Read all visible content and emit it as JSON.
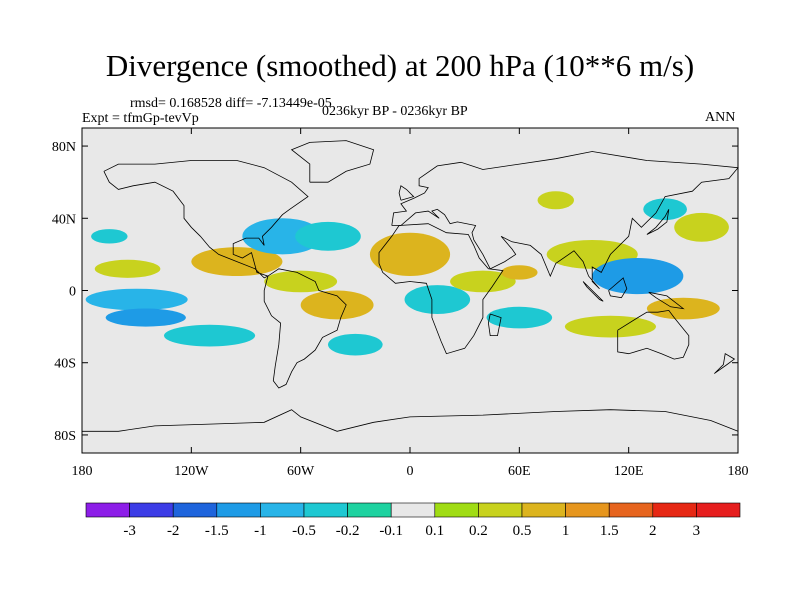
{
  "title": "Divergence (smoothed) at 200 hPa (10**6 m/s)",
  "stats": "rmsd= 0.168528 diff= -7.13449e-05",
  "experiment": "Expt = tfmGp-tevVp",
  "period": "0236kyr BP - 0236kyr BP",
  "season": "ANN",
  "map": {
    "projection": "cylindrical-equidistant",
    "lon_range": [
      -180,
      180
    ],
    "lat_range": [
      -90,
      90
    ],
    "land_color": "#e8e8e8",
    "coast_color": "#000000",
    "x_ticks": [
      {
        "lon": -180,
        "label": "180"
      },
      {
        "lon": -120,
        "label": "120W"
      },
      {
        "lon": -60,
        "label": "60W"
      },
      {
        "lon": 0,
        "label": "0"
      },
      {
        "lon": 60,
        "label": "60E"
      },
      {
        "lon": 120,
        "label": "120E"
      },
      {
        "lon": 180,
        "label": "180"
      }
    ],
    "y_ticks": [
      {
        "lat": 80,
        "label": "80N"
      },
      {
        "lat": 40,
        "label": "40N"
      },
      {
        "lat": 0,
        "label": "0"
      },
      {
        "lat": -40,
        "label": "40S"
      },
      {
        "lat": -80,
        "label": "80S"
      }
    ]
  },
  "colorbar": {
    "boundaries": [
      "-3",
      "-2",
      "-1.5",
      "-1",
      "-0.5",
      "-0.2",
      "-0.1",
      "0.1",
      "0.2",
      "0.5",
      "1",
      "1.5",
      "2",
      "3"
    ],
    "colors": [
      "#8d1ee8",
      "#3c3ce6",
      "#1e64dc",
      "#1e9be6",
      "#28b4e8",
      "#1ec8d2",
      "#1ed2a0",
      "#e8e8e8",
      "#a0dc14",
      "#c8d21e",
      "#dcb41e",
      "#e6961e",
      "#e6641e",
      "#e62814",
      "#e61e1e"
    ]
  },
  "fields": [
    {
      "lon": -155,
      "lat": 12,
      "rx": 18,
      "ry": 5,
      "level": "0.2",
      "color": "#c8d21e"
    },
    {
      "lon": -150,
      "lat": -5,
      "rx": 28,
      "ry": 6,
      "level": "-0.5",
      "color": "#28b4e8"
    },
    {
      "lon": -145,
      "lat": -15,
      "rx": 22,
      "ry": 5,
      "level": "-1",
      "color": "#1e9be6"
    },
    {
      "lon": -110,
      "lat": -25,
      "rx": 25,
      "ry": 6,
      "level": "-0.2",
      "color": "#1ec8d2"
    },
    {
      "lon": -165,
      "lat": 30,
      "rx": 10,
      "ry": 4,
      "level": "-0.2",
      "color": "#1ec8d2"
    },
    {
      "lon": -95,
      "lat": 16,
      "rx": 25,
      "ry": 8,
      "level": "0.5",
      "color": "#dcb41e"
    },
    {
      "lon": -70,
      "lat": 30,
      "rx": 22,
      "ry": 10,
      "level": "-0.5",
      "color": "#28b4e8"
    },
    {
      "lon": -45,
      "lat": 30,
      "rx": 18,
      "ry": 8,
      "level": "-0.2",
      "color": "#1ec8d2"
    },
    {
      "lon": -60,
      "lat": 5,
      "rx": 20,
      "ry": 6,
      "level": "0.2",
      "color": "#c8d21e"
    },
    {
      "lon": -40,
      "lat": -8,
      "rx": 20,
      "ry": 8,
      "level": "0.5",
      "color": "#dcb41e"
    },
    {
      "lon": -30,
      "lat": -30,
      "rx": 15,
      "ry": 6,
      "level": "-0.2",
      "color": "#1ec8d2"
    },
    {
      "lon": 0,
      "lat": 20,
      "rx": 22,
      "ry": 12,
      "level": "0.5",
      "color": "#dcb41e"
    },
    {
      "lon": 15,
      "lat": -5,
      "rx": 18,
      "ry": 8,
      "level": "-0.2",
      "color": "#1ec8d2"
    },
    {
      "lon": 40,
      "lat": 5,
      "rx": 18,
      "ry": 6,
      "level": "0.2",
      "color": "#c8d21e"
    },
    {
      "lon": 60,
      "lat": 10,
      "rx": 10,
      "ry": 4,
      "level": "0.5",
      "color": "#dcb41e"
    },
    {
      "lon": 60,
      "lat": -15,
      "rx": 18,
      "ry": 6,
      "level": "-0.2",
      "color": "#1ec8d2"
    },
    {
      "lon": 100,
      "lat": 20,
      "rx": 25,
      "ry": 8,
      "level": "0.2",
      "color": "#c8d21e"
    },
    {
      "lon": 125,
      "lat": 8,
      "rx": 25,
      "ry": 10,
      "level": "-1",
      "color": "#1e9be6"
    },
    {
      "lon": 110,
      "lat": -20,
      "rx": 25,
      "ry": 6,
      "level": "0.2",
      "color": "#c8d21e"
    },
    {
      "lon": 150,
      "lat": -10,
      "rx": 20,
      "ry": 6,
      "level": "0.5",
      "color": "#dcb41e"
    },
    {
      "lon": 160,
      "lat": 35,
      "rx": 15,
      "ry": 8,
      "level": "0.2",
      "color": "#c8d21e"
    },
    {
      "lon": 140,
      "lat": 45,
      "rx": 12,
      "ry": 6,
      "level": "-0.2",
      "color": "#1ec8d2"
    },
    {
      "lon": 80,
      "lat": 50,
      "rx": 10,
      "ry": 5,
      "level": "0.2",
      "color": "#c8d21e"
    }
  ]
}
